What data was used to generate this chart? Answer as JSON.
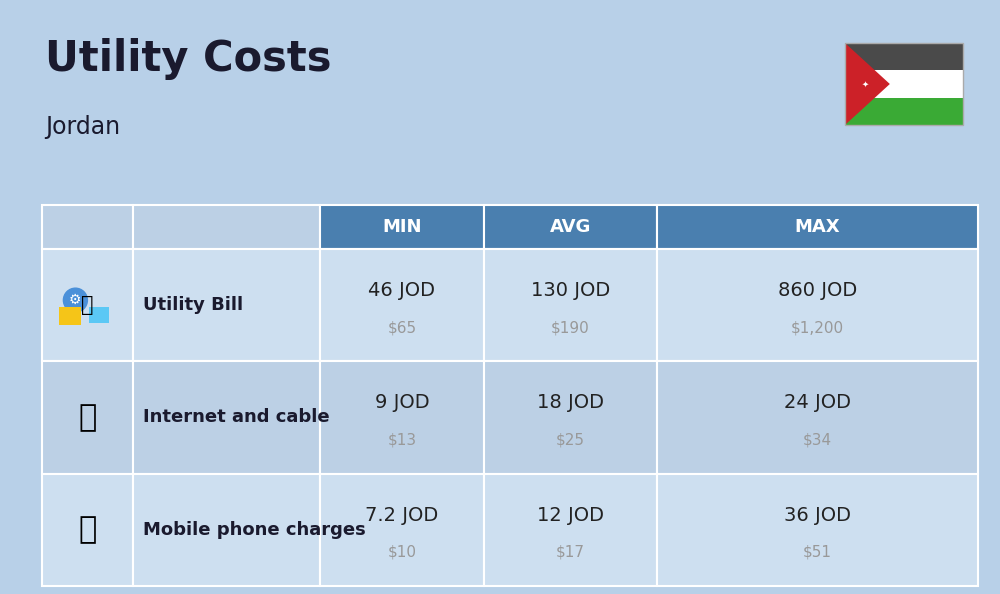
{
  "title": "Utility Costs",
  "subtitle": "Jordan",
  "background_color": "#b8d0e8",
  "header_bg_color": "#4a7faf",
  "header_text_color": "#ffffff",
  "row_bg_color_1": "#cddff0",
  "row_bg_color_2": "#bcd0e5",
  "table_border_color": "#ffffff",
  "rows": [
    {
      "label": "Utility Bill",
      "icon": "utility",
      "min_jod": "46 JOD",
      "min_usd": "$65",
      "avg_jod": "130 JOD",
      "avg_usd": "$190",
      "max_jod": "860 JOD",
      "max_usd": "$1,200"
    },
    {
      "label": "Internet and cable",
      "icon": "internet",
      "min_jod": "9 JOD",
      "min_usd": "$13",
      "avg_jod": "18 JOD",
      "avg_usd": "$25",
      "max_jod": "24 JOD",
      "max_usd": "$34"
    },
    {
      "label": "Mobile phone charges",
      "icon": "mobile",
      "min_jod": "7.2 JOD",
      "min_usd": "$10",
      "avg_jod": "12 JOD",
      "avg_usd": "$17",
      "max_jod": "36 JOD",
      "max_usd": "$51"
    }
  ],
  "header_fontsize": 13,
  "label_fontsize": 13,
  "value_fontsize": 14,
  "usd_fontsize": 11,
  "title_fontsize": 30,
  "subtitle_fontsize": 17,
  "main_text_color": "#1a1a2e",
  "usd_text_color": "#999999",
  "value_text_color": "#222222",
  "flag_black": "#4a4a4a",
  "flag_white": "#ffffff",
  "flag_green": "#3aaa35",
  "flag_red": "#cc2128"
}
